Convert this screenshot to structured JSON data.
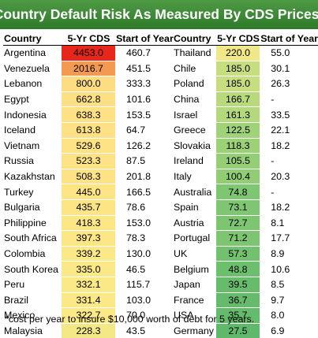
{
  "title": "Country Default Risk As Measured By CDS Prices*",
  "headers": {
    "country": "Country",
    "cds": "5-Yr CDS",
    "soy": "Start of Year"
  },
  "footnote": "*cost per year to insure $10,000 worth of debt for 5 years.",
  "chart_data": {
    "type": "table",
    "title": "Country Default Risk As Measured By CDS Prices*",
    "columns": [
      "Country",
      "5-Yr CDS",
      "Start of Year"
    ],
    "left_rows": [
      {
        "country": "Argentina",
        "cds": "4453.0",
        "soy": "460.7",
        "color": "#e8261b"
      },
      {
        "country": "Venezuela",
        "cds": "2016.7",
        "soy": "451.5",
        "color": "#f29a52"
      },
      {
        "country": "Lebanon",
        "cds": "800.0",
        "soy": "333.3",
        "color": "#fddc82"
      },
      {
        "country": "Egypt",
        "cds": "662.8",
        "soy": "101.6",
        "color": "#fde084"
      },
      {
        "country": "Indonesia",
        "cds": "638.3",
        "soy": "153.5",
        "color": "#fde184"
      },
      {
        "country": "Iceland",
        "cds": "613.8",
        "soy": "64.7",
        "color": "#fde184"
      },
      {
        "country": "Vietnam",
        "cds": "529.6",
        "soy": "126.2",
        "color": "#fde385"
      },
      {
        "country": "Russia",
        "cds": "523.3",
        "soy": "87.5",
        "color": "#fde385"
      },
      {
        "country": "Kazakhstan",
        "cds": "508.3",
        "soy": "201.8",
        "color": "#fde385"
      },
      {
        "country": "Turkey",
        "cds": "445.0",
        "soy": "166.5",
        "color": "#fde585"
      },
      {
        "country": "Bulgaria",
        "cds": "435.7",
        "soy": "78.6",
        "color": "#fde585"
      },
      {
        "country": "Philippine",
        "cds": "418.3",
        "soy": "153.0",
        "color": "#fce686"
      },
      {
        "country": "South Africa",
        "cds": "397.3",
        "soy": "78.3",
        "color": "#fce686"
      },
      {
        "country": "Colombia",
        "cds": "339.2",
        "soy": "130.0",
        "color": "#fbe887"
      },
      {
        "country": "South Korea",
        "cds": "335.0",
        "soy": "46.5",
        "color": "#fbe887"
      },
      {
        "country": "Peru",
        "cds": "332.1",
        "soy": "115.7",
        "color": "#fbe887"
      },
      {
        "country": "Brazil",
        "cds": "331.4",
        "soy": "103.0",
        "color": "#fbe887"
      },
      {
        "country": "Mexico",
        "cds": "322.7",
        "soy": "70.0",
        "color": "#fbe987"
      },
      {
        "country": "Malaysia",
        "cds": "228.3",
        "soy": "43.5",
        "color": "#f2e886"
      }
    ],
    "right_rows": [
      {
        "country": "Thailand",
        "cds": "220.0",
        "soy": "55.0",
        "color": "#f0e786"
      },
      {
        "country": "Chile",
        "cds": "185.0",
        "soy": "30.1",
        "color": "#c6de80"
      },
      {
        "country": "Poland",
        "cds": "185.0",
        "soy": "26.3",
        "color": "#c6de80"
      },
      {
        "country": "China",
        "cds": "166.7",
        "soy": "-",
        "color": "#b8da7d"
      },
      {
        "country": "Israel",
        "cds": "161.3",
        "soy": "33.5",
        "color": "#b4d97c"
      },
      {
        "country": "Greece",
        "cds": "122.5",
        "soy": "22.1",
        "color": "#9fd279"
      },
      {
        "country": "Slovakia",
        "cds": "118.3",
        "soy": "18.2",
        "color": "#9cd178"
      },
      {
        "country": "Ireland",
        "cds": "105.5",
        "soy": "-",
        "color": "#94ce76"
      },
      {
        "country": "Italy",
        "cds": "100.4",
        "soy": "20.3",
        "color": "#91cd75"
      },
      {
        "country": "Australia",
        "cds": "74.8",
        "soy": "-",
        "color": "#7fc672"
      },
      {
        "country": "Spain",
        "cds": "73.1",
        "soy": "18.2",
        "color": "#7ec672"
      },
      {
        "country": "Austria",
        "cds": "72.7",
        "soy": "8.1",
        "color": "#7ec572"
      },
      {
        "country": "Portugal",
        "cds": "71.2",
        "soy": "17.7",
        "color": "#7dc571"
      },
      {
        "country": "UK",
        "cds": "57.3",
        "soy": "8.9",
        "color": "#72c16f"
      },
      {
        "country": "Belgium",
        "cds": "48.8",
        "soy": "10.6",
        "color": "#6cbf6d"
      },
      {
        "country": "Japan",
        "cds": "39.5",
        "soy": "8.5",
        "color": "#67bc6c"
      },
      {
        "country": "France",
        "cds": "36.7",
        "soy": "9.7",
        "color": "#65bb6b"
      },
      {
        "country": "USA",
        "cds": "35.7",
        "soy": "8.0",
        "color": "#64bb6b"
      },
      {
        "country": "Germany",
        "cds": "27.5",
        "soy": "6.9",
        "color": "#5fb96a"
      }
    ]
  }
}
